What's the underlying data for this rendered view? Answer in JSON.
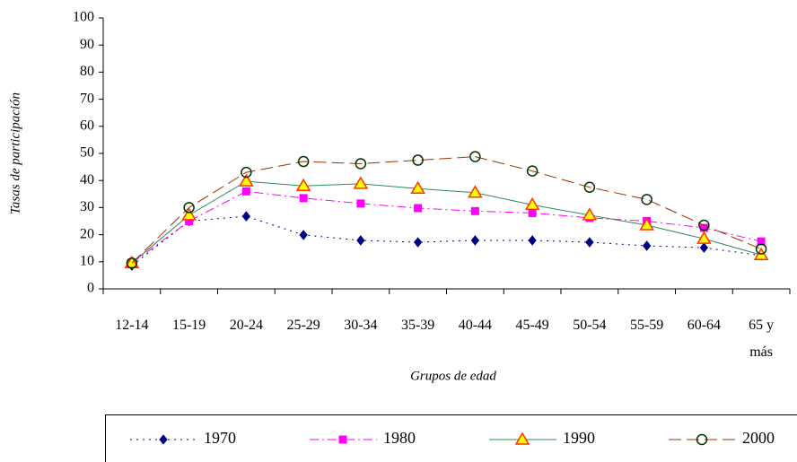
{
  "chart_data": {
    "type": "line",
    "y_label": "Tasas de participación",
    "x_label": "Grupos de edad",
    "categories": [
      "12-14",
      "15-19",
      "20-24",
      "25-29",
      "30-34",
      "35-39",
      "40-44",
      "45-49",
      "50-54",
      "55-59",
      "60-64",
      "65 y más"
    ],
    "series": [
      {
        "name": "1970",
        "color": "#000080",
        "values": [
          8.6,
          25,
          26.8,
          19.9,
          17.9,
          17.2,
          17.9,
          17.9,
          17.2,
          15.9,
          15.2,
          12.3
        ]
      },
      {
        "name": "1980",
        "color": "#ff00ff",
        "values": [
          9.5,
          25,
          36,
          33.5,
          31.5,
          29.8,
          28.7,
          28,
          26.2,
          25,
          22.5,
          17.5
        ]
      },
      {
        "name": "1990",
        "color": "#2e8b57",
        "values": [
          9.5,
          27.2,
          39.7,
          38,
          38.8,
          37,
          35.5,
          31,
          27.2,
          23.5,
          18.5,
          12.5
        ]
      },
      {
        "name": "2000",
        "color": "#993300",
        "values": [
          9.5,
          30,
          43,
          47,
          46.2,
          47.5,
          48.8,
          43.5,
          37.5,
          33,
          23.5,
          14.7
        ]
      }
    ],
    "ylim": [
      0,
      100
    ],
    "yticks": [
      0,
      10,
      20,
      30,
      40,
      50,
      60,
      70,
      80,
      90,
      100
    ],
    "grid": false,
    "legend": "bottom"
  }
}
